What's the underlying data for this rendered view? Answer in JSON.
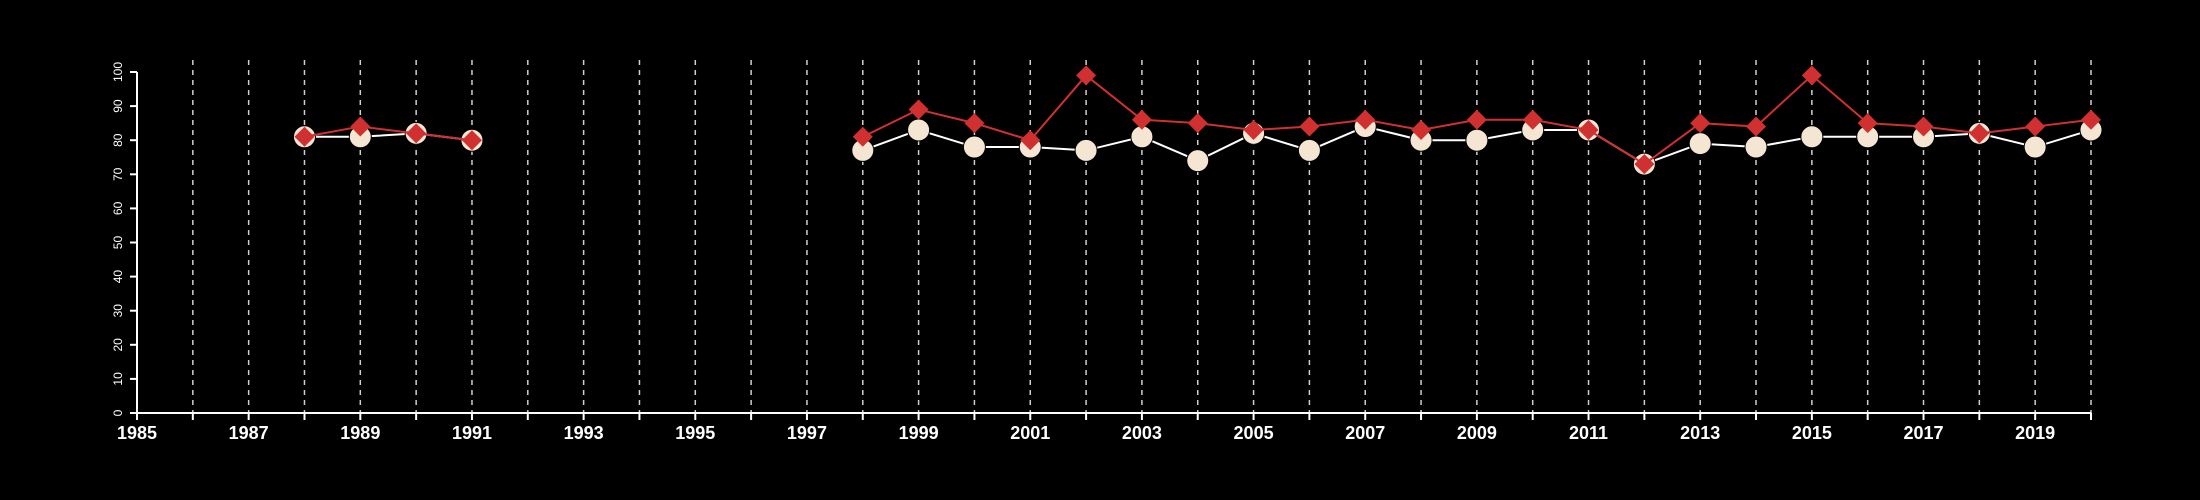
{
  "chart_data": {
    "type": "line",
    "title": "",
    "xlabel": "",
    "ylabel": "",
    "xlim": [
      1985,
      2020
    ],
    "ylim": [
      0,
      100
    ],
    "grid": "vertical dashed lines at each year",
    "legend": "none",
    "x_ticks": [
      1985,
      1987,
      1989,
      1991,
      1993,
      1995,
      1997,
      1999,
      2001,
      2003,
      2005,
      2007,
      2009,
      2011,
      2013,
      2015,
      2017,
      2019
    ],
    "y_ticks": [
      0,
      10,
      20,
      30,
      40,
      50,
      60,
      70,
      80,
      90,
      100
    ],
    "colors": {
      "background": "#000000",
      "axes": "#ffffff",
      "grid": "#cfcfcf"
    },
    "series": [
      {
        "marker": "circle",
        "color": "#f5e6d3",
        "line_color": "#ffffff",
        "segments": [
          {
            "x": [
              1988,
              1989,
              1990,
              1991
            ],
            "y": [
              81,
              81,
              82,
              80
            ]
          },
          {
            "x": [
              1998,
              1999,
              2000,
              2001,
              2002,
              2003,
              2004,
              2005,
              2006,
              2007,
              2008,
              2009,
              2010,
              2011,
              2012,
              2013,
              2014,
              2015,
              2016,
              2017,
              2018,
              2019,
              2020
            ],
            "y": [
              77,
              83,
              78,
              78,
              77,
              81,
              74,
              82,
              77,
              84,
              80,
              80,
              83,
              83,
              73,
              79,
              78,
              81,
              81,
              81,
              82,
              78,
              83
            ]
          }
        ]
      },
      {
        "marker": "diamond",
        "color": "#d03030",
        "line_color": "#d03030",
        "segments": [
          {
            "x": [
              1988,
              1989,
              1990,
              1991
            ],
            "y": [
              81,
              84,
              82,
              80
            ]
          },
          {
            "x": [
              1998,
              1999,
              2000,
              2001,
              2002,
              2003,
              2004,
              2005,
              2006,
              2007,
              2008,
              2009,
              2010,
              2011,
              2012,
              2013,
              2014,
              2015,
              2016,
              2017,
              2018,
              2019,
              2020
            ],
            "y": [
              81,
              89,
              85,
              80,
              99,
              86,
              85,
              83,
              84,
              86,
              83,
              86,
              86,
              83,
              73,
              85,
              84,
              99,
              85,
              84,
              82,
              84,
              86
            ]
          }
        ]
      }
    ]
  }
}
